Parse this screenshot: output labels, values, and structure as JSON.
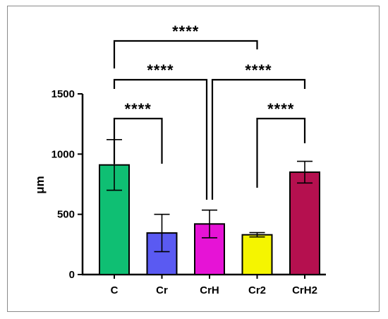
{
  "chart_data": {
    "type": "bar",
    "categories": [
      "C",
      "Cr",
      "CrH",
      "Cr2",
      "CrH2"
    ],
    "values": [
      910,
      345,
      420,
      330,
      850
    ],
    "error": [
      210,
      155,
      115,
      18,
      90
    ],
    "colors": [
      "#0fbf73",
      "#5a5af2",
      "#e613d6",
      "#f5f500",
      "#b5104f"
    ],
    "ylabel": "μm",
    "ylim": [
      0,
      1500
    ],
    "yticks": [
      0,
      500,
      1000,
      1500
    ],
    "grid": false,
    "significance": [
      {
        "from": "C",
        "to": "Cr",
        "label": "****"
      },
      {
        "from": "C",
        "to": "CrH",
        "label": "****"
      },
      {
        "from": "CrH",
        "to": "CrH2",
        "label": "****"
      },
      {
        "from": "C",
        "to": "Cr2",
        "label": "****"
      },
      {
        "from": "Cr2",
        "to": "CrH2",
        "label": "****"
      }
    ]
  }
}
